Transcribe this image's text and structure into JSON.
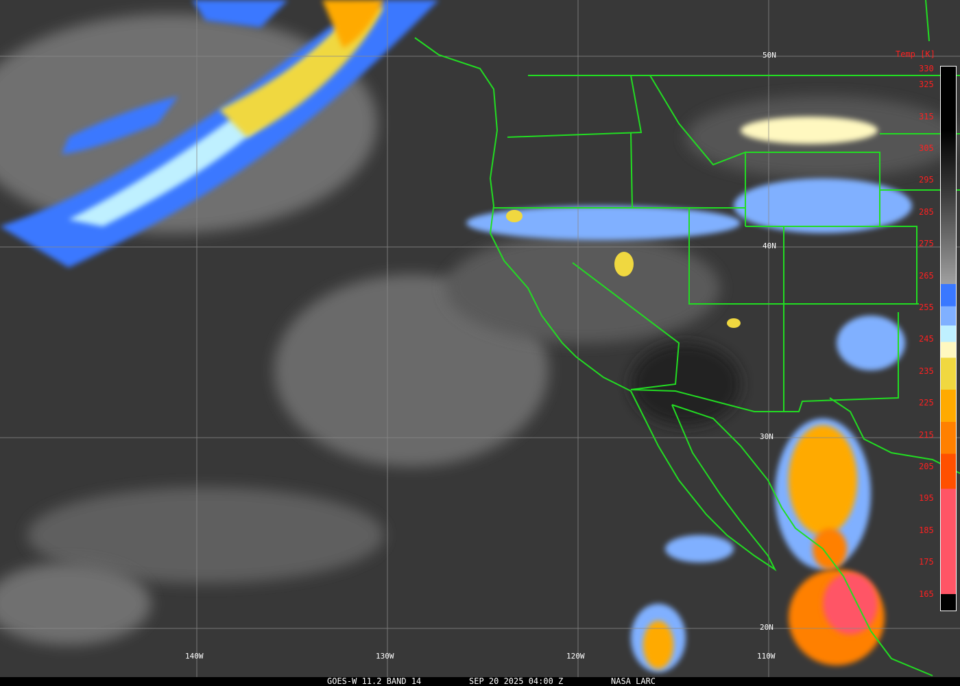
{
  "footer": {
    "satellite": "GOES-W 11.2 BAND 14",
    "datetime": "SEP 20 2025 04:00 Z",
    "source": "NASA LARC"
  },
  "latitudes": [
    "50N",
    "40N",
    "30N",
    "20N"
  ],
  "longitudes": [
    "140W",
    "130W",
    "120W",
    "110W"
  ],
  "colorbar": {
    "title": "Temp [K]",
    "labels": [
      "330",
      "325",
      "315",
      "305",
      "295",
      "285",
      "275",
      "265",
      "255",
      "245",
      "235",
      "225",
      "215",
      "205",
      "195",
      "185",
      "175",
      "165"
    ],
    "colors": [
      "#000000",
      "#3c3c3c",
      "#a0a0a0",
      "#3a78ff",
      "#80b0ff",
      "#bff0ff",
      "#fff8c0",
      "#f0d840",
      "#ffaa00",
      "#ff8000",
      "#ff5000",
      "#ff5566"
    ]
  },
  "colors": {
    "borders": "#22dd22",
    "grid": "#8a8a8a"
  }
}
